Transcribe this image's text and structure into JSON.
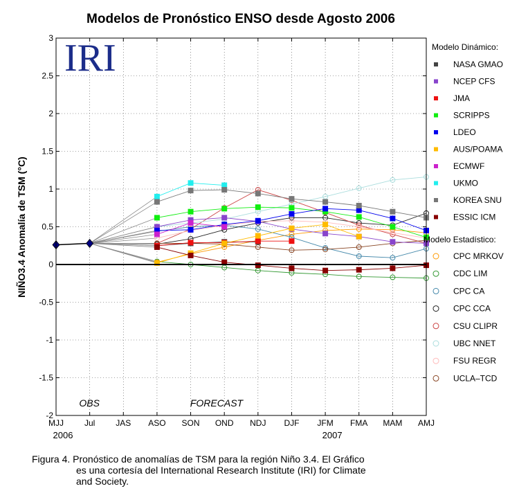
{
  "caption": {
    "line1": "Figura 4.  Pronóstico de anomalías de TSM para la región Niño 3.4. El Gráfico",
    "line2": "es  una  cortesía  del  International Research Institute (IRI)  for Climate",
    "line3": "and Society."
  },
  "chart_data": {
    "type": "line",
    "title": "Modelos de Pronóstico ENSO desde Agosto 2006",
    "ylabel": "NIÑO3.4 Anomalía de TSM (°C)",
    "xlabel": "",
    "ylim": [
      -2,
      3
    ],
    "yticks": [
      "-2",
      "-1.5",
      "-1",
      "-0.5",
      "0",
      "0.5",
      "1",
      "1.5",
      "2",
      "2.5",
      "3"
    ],
    "categories": [
      "MJJ",
      "Jul",
      "JAS",
      "ASO",
      "SON",
      "OND",
      "NDJ",
      "DJF",
      "JFM",
      "FMA",
      "MAM",
      "AMJ"
    ],
    "year_labels": [
      {
        "label": "2006",
        "at": 0
      },
      {
        "label": "2007",
        "at": 8
      }
    ],
    "logo": "IRI",
    "annotations": [
      {
        "text": "OBS",
        "at": 1.2
      },
      {
        "text": "FORECAST",
        "at": 4.5
      }
    ],
    "grid": true,
    "legend": {
      "placement": "right",
      "dynamic_title": "Modelo Dinámico:",
      "statistical_title": "Modelo Estadístico:"
    },
    "observed": {
      "name": "",
      "color": "#000080",
      "x": [
        0,
        1
      ],
      "values": [
        0.26,
        0.28
      ]
    },
    "dynamic_series": [
      {
        "name": "NASA GMAO",
        "color": "#444444",
        "start": 3,
        "values": [
          0.25,
          0.28,
          0.3,
          0.3
        ]
      },
      {
        "name": "NCEP CFS",
        "color": "#8844cc",
        "start": 3,
        "values": [
          0.5,
          0.59,
          0.62,
          0.57,
          0.47,
          0.41,
          0.37,
          0.3,
          0.28
        ]
      },
      {
        "name": "JMA",
        "color": "#ee1111",
        "start": 3,
        "values": [
          0.25,
          0.29,
          0.29,
          0.31,
          0.31
        ]
      },
      {
        "name": "SCRIPPS",
        "color": "#11ee11",
        "start": 3,
        "values": [
          0.62,
          0.7,
          0.74,
          0.76,
          0.75,
          0.7,
          0.63,
          0.5,
          0.36
        ]
      },
      {
        "name": "LDEO",
        "color": "#0000ee",
        "start": 3,
        "values": [
          0.45,
          0.46,
          0.53,
          0.58,
          0.67,
          0.74,
          0.72,
          0.61,
          0.45
        ]
      },
      {
        "name": "AUS/POAMA",
        "color": "#ffbb00",
        "start": 3,
        "values": [
          0.02,
          0.15,
          0.28,
          0.38,
          0.48,
          0.53,
          0.37
        ]
      },
      {
        "name": "ECMWF",
        "color": "#cc22cc",
        "start": 3,
        "values": [
          0.4,
          0.55,
          0.5
        ]
      },
      {
        "name": "UKMO",
        "color": "#22eeee",
        "start": 3,
        "values": [
          0.9,
          1.08,
          1.05
        ]
      },
      {
        "name": "KOREA SNU",
        "color": "#777777",
        "start": 3,
        "values": [
          0.83,
          0.98,
          0.99,
          0.94,
          0.87,
          0.83,
          0.78,
          0.7,
          0.62
        ]
      },
      {
        "name": "ESSIC ICM",
        "color": "#880000",
        "start": 3,
        "values": [
          0.23,
          0.12,
          0.03,
          -0.01,
          -0.05,
          -0.08,
          -0.07,
          -0.05,
          -0.01
        ]
      }
    ],
    "statistical_series": [
      {
        "name": "CPC MRKOV",
        "color": "#ff9900",
        "start": 3,
        "values": [
          0.03,
          0.14,
          0.23,
          0.32,
          0.4,
          0.45,
          0.47,
          0.46,
          0.42
        ]
      },
      {
        "name": "CDC LIM",
        "color": "#339933",
        "start": 3,
        "values": [
          0.04,
          0.0,
          -0.04,
          -0.08,
          -0.11,
          -0.13,
          -0.16,
          -0.17,
          -0.18
        ]
      },
      {
        "name": "CPC CA",
        "color": "#4488aa",
        "start": 3,
        "values": [
          0.44,
          0.5,
          0.52,
          0.47,
          0.36,
          0.22,
          0.11,
          0.09,
          0.21
        ]
      },
      {
        "name": "CPC CCA",
        "color": "#222222",
        "start": 3,
        "values": [
          0.27,
          0.34,
          0.46,
          0.55,
          0.62,
          0.62,
          0.55,
          0.52,
          0.68
        ]
      },
      {
        "name": "CSU CLIPR",
        "color": "#cc4444",
        "start": 3,
        "values": [
          0.28,
          0.47,
          0.75,
          0.99,
          0.85,
          0.69,
          0.52,
          0.4,
          0.28
        ]
      },
      {
        "name": "UBC NNET",
        "color": "#aadddd",
        "start": 3,
        "values": [
          0.5,
          0.55,
          0.6,
          0.7,
          0.8,
          0.9,
          1.01,
          1.12,
          1.16
        ]
      },
      {
        "name": "FSU REGR",
        "color": "#ffbbbb",
        "start": 3,
        "values": [
          0.35,
          0.45,
          0.52,
          0.57,
          0.58,
          0.56,
          0.5,
          0.42,
          0.35
        ]
      },
      {
        "name": "UCLA–TCD",
        "color": "#884422",
        "start": 3,
        "values": [
          0.28,
          0.28,
          0.27,
          0.23,
          0.19,
          0.2,
          0.23,
          0.28,
          0.32
        ]
      }
    ]
  }
}
